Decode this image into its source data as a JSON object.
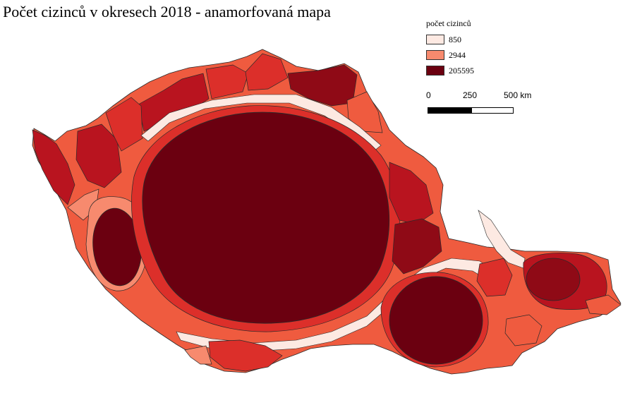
{
  "title": "Počet cizinců v okresech 2018 - anamorfovaná mapa",
  "legend": {
    "title": "počet cizinců",
    "items": [
      {
        "label": "850",
        "color": "#fde9e2"
      },
      {
        "label": "2944",
        "color": "#f78a6e"
      },
      {
        "label": "205595",
        "color": "#6b0010"
      }
    ]
  },
  "scalebar": {
    "labels": [
      "0",
      "250",
      "500 km"
    ]
  },
  "colors": {
    "darkest": "#6b0010",
    "dark": "#8f0a16",
    "mid_dark": "#b9141f",
    "mid": "#dc2f2a",
    "orange": "#ef5b3f",
    "light_orange": "#f78a6e",
    "pale": "#fde9e2",
    "border": "#2a2a2a"
  }
}
